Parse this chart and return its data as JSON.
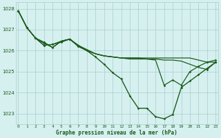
{
  "title": "Graphe pression niveau de la mer (hPa)",
  "background_color": "#d6f0f0",
  "grid_color": "#aacccc",
  "line_color": "#1a5c1a",
  "xlim_min": -0.3,
  "xlim_max": 23.3,
  "ylim_min": 1022.5,
  "ylim_max": 1028.3,
  "yticks": [
    1023,
    1024,
    1025,
    1026,
    1027,
    1028
  ],
  "xticks": [
    0,
    1,
    2,
    3,
    4,
    5,
    6,
    7,
    8,
    9,
    10,
    11,
    12,
    13,
    14,
    15,
    16,
    17,
    18,
    19,
    20,
    21,
    22,
    23
  ],
  "series": [
    {
      "x": [
        0,
        1,
        2,
        3,
        4,
        5,
        6,
        7,
        8,
        9,
        10,
        11,
        12,
        13,
        14,
        15,
        16,
        17,
        18,
        19,
        20,
        21,
        22,
        23
      ],
      "y": [
        1027.9,
        1027.1,
        1026.6,
        1026.4,
        1026.15,
        1026.45,
        1026.55,
        1026.25,
        1026.0,
        1025.7,
        1025.35,
        1024.95,
        1024.65,
        1023.85,
        1023.25,
        1023.25,
        1022.85,
        1022.75,
        1022.95,
        1024.25,
        1024.55,
        1024.85,
        1025.15,
        1025.45
      ],
      "markers": true,
      "linewidth": 1.0
    },
    {
      "x": [
        0,
        1,
        2,
        3,
        4,
        5,
        6,
        7,
        8,
        9,
        10,
        11,
        12,
        13,
        14,
        15,
        16,
        17,
        18,
        19,
        20,
        21,
        22,
        23
      ],
      "y": [
        1027.9,
        1027.1,
        1026.6,
        1026.35,
        1026.15,
        1026.45,
        1026.55,
        1026.25,
        1026.05,
        1025.85,
        1025.75,
        1025.7,
        1025.65,
        1025.65,
        1025.65,
        1025.65,
        1025.65,
        1025.65,
        1025.65,
        1025.65,
        1025.65,
        1025.55,
        1025.45,
        1025.45
      ],
      "markers_x": [
        0,
        1,
        2,
        3,
        5,
        6,
        7,
        22,
        23
      ],
      "markers_y": [
        1027.9,
        1027.1,
        1026.6,
        1026.35,
        1026.45,
        1026.55,
        1026.25,
        1025.45,
        1025.45
      ],
      "linewidth": 0.9
    },
    {
      "x": [
        0,
        1,
        2,
        3,
        4,
        5,
        6,
        7,
        8,
        9,
        10,
        11,
        12,
        13,
        14,
        15,
        16,
        17,
        18,
        19,
        20,
        21,
        22,
        23
      ],
      "y": [
        1027.9,
        1027.1,
        1026.6,
        1026.25,
        1026.3,
        1026.45,
        1026.55,
        1026.2,
        1026.0,
        1025.85,
        1025.75,
        1025.7,
        1025.65,
        1025.65,
        1025.65,
        1025.6,
        1025.6,
        1025.55,
        1025.55,
        1025.5,
        1025.35,
        1025.2,
        1025.1,
        1025.45
      ],
      "markers_x": [
        0,
        1,
        2,
        3,
        4,
        5,
        6,
        7,
        22,
        23
      ],
      "markers_y": [
        1027.9,
        1027.1,
        1026.6,
        1026.25,
        1026.3,
        1026.45,
        1026.55,
        1026.2,
        1025.1,
        1025.45
      ],
      "linewidth": 0.9
    },
    {
      "x": [
        0,
        1,
        2,
        3,
        4,
        5,
        6,
        7,
        8,
        9,
        10,
        11,
        12,
        13,
        14,
        15,
        16,
        17,
        18,
        19,
        20,
        21,
        22,
        23
      ],
      "y": [
        1027.9,
        1027.1,
        1026.6,
        1026.25,
        1026.3,
        1026.4,
        1026.55,
        1026.2,
        1026.0,
        1025.85,
        1025.75,
        1025.7,
        1025.65,
        1025.6,
        1025.6,
        1025.6,
        1025.55,
        1024.35,
        1024.6,
        1024.35,
        1025.0,
        1025.25,
        1025.45,
        1025.55
      ],
      "markers_x": [
        0,
        1,
        2,
        3,
        4,
        5,
        6,
        7,
        17,
        18,
        19,
        20,
        21,
        22,
        23
      ],
      "markers_y": [
        1027.9,
        1027.1,
        1026.6,
        1026.25,
        1026.3,
        1026.4,
        1026.55,
        1026.2,
        1024.35,
        1024.6,
        1024.35,
        1025.0,
        1025.25,
        1025.45,
        1025.55
      ],
      "linewidth": 0.9
    }
  ]
}
